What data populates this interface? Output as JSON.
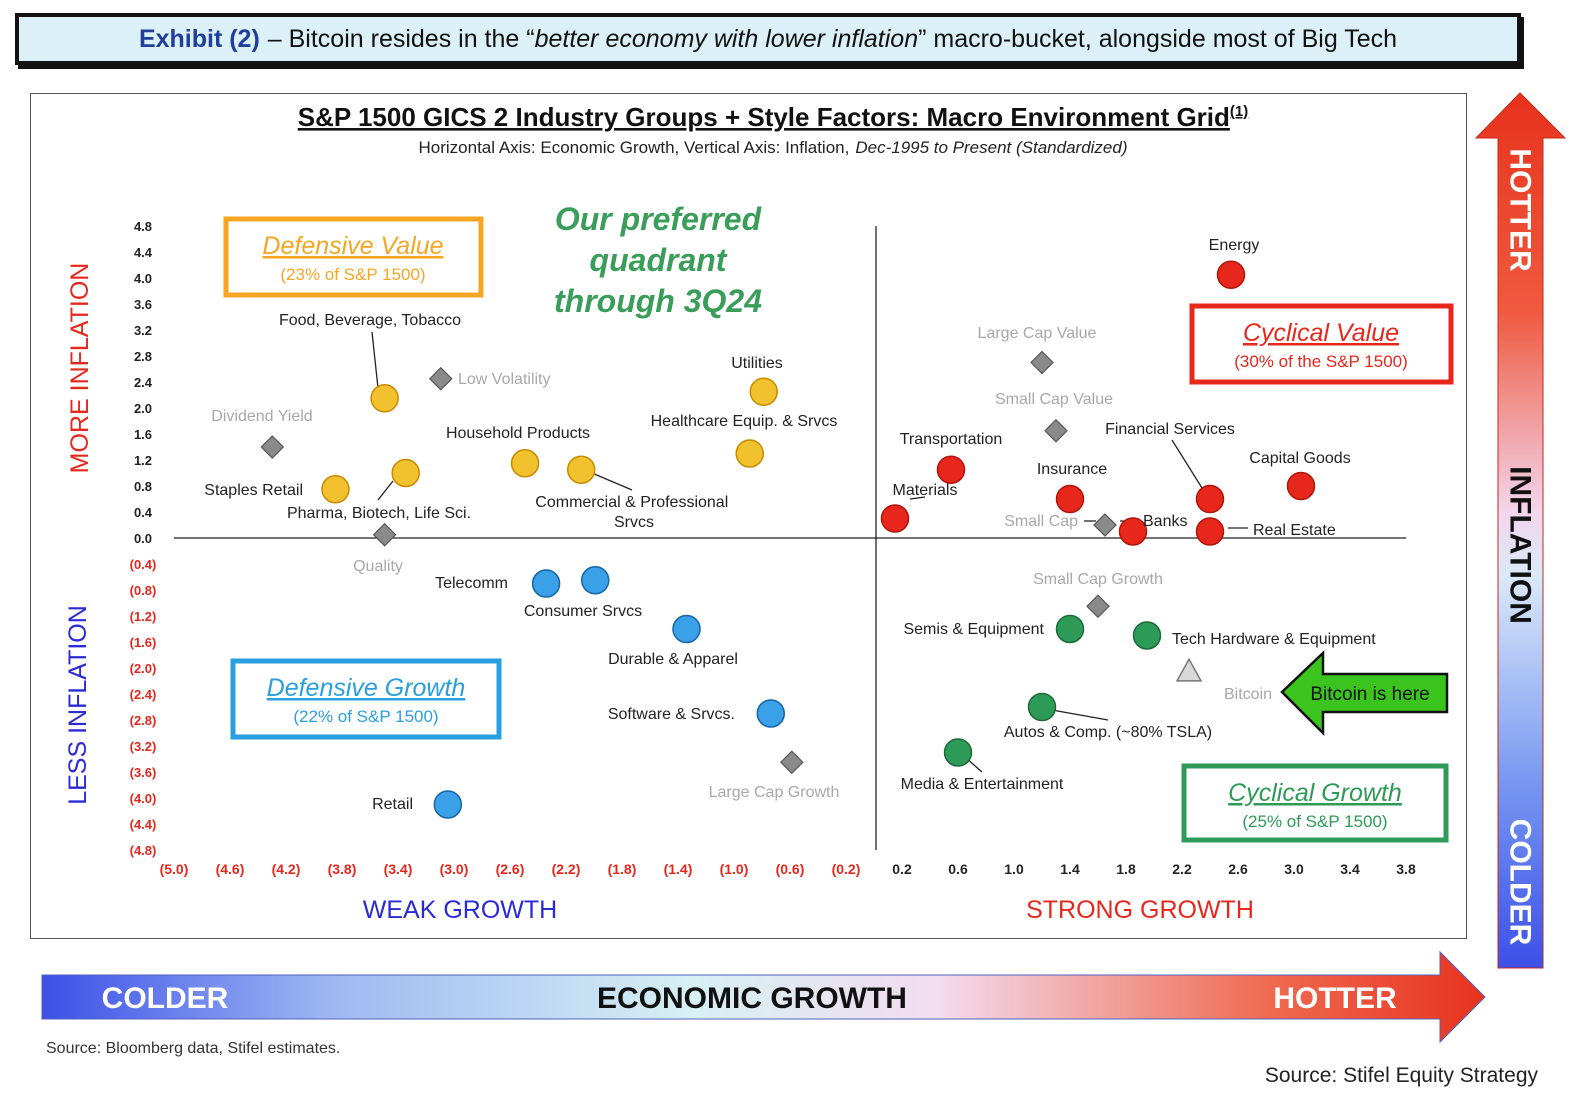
{
  "exhibit": {
    "label": "Exhibit (2)",
    "pre": "– Bitcoin resides in the “",
    "italic": "better economy with lower inflation",
    "post": "” macro-bucket, alongside most of Big Tech"
  },
  "chart_data": {
    "type": "scatter",
    "title": "S&P 1500 GICS 2 Industry Groups + Style Factors: Macro Environment Grid",
    "title_sup": "(1)",
    "subtitle_plain": "Horizontal Axis: Economic Growth, Vertical Axis: Inflation,",
    "subtitle_italic": "Dec-1995 to Present (Standardized)",
    "xlabel_left": "WEAK GROWTH",
    "xlabel_right": "STRONG GROWTH",
    "ylabel_top": "MORE INFLATION",
    "ylabel_bottom": "LESS INFLATION",
    "xlim": [
      -5.0,
      4.0
    ],
    "ylim": [
      -4.8,
      4.8
    ],
    "x_ticks": [
      "(5.0)",
      "(4.6)",
      "(4.2)",
      "(3.8)",
      "(3.4)",
      "(3.0)",
      "(2.6)",
      "(2.2)",
      "(1.8)",
      "(1.4)",
      "(1.0)",
      "(0.6)",
      "(0.2)",
      "0.2",
      "0.6",
      "1.0",
      "1.4",
      "1.8",
      "2.2",
      "2.6",
      "3.0",
      "3.4",
      "3.8"
    ],
    "y_ticks": [
      "4.8",
      "4.4",
      "4.0",
      "3.6",
      "3.2",
      "2.8",
      "2.4",
      "2.0",
      "1.6",
      "1.2",
      "0.8",
      "0.4",
      "0.0",
      "(0.4)",
      "(0.8)",
      "(1.2)",
      "(1.6)",
      "(2.0)",
      "(2.4)",
      "(2.8)",
      "(3.2)",
      "(3.6)",
      "(4.0)",
      "(4.4)",
      "(4.8)"
    ],
    "series": [
      {
        "name": "Defensive Value",
        "color": "#f2c12e",
        "stroke": "#c98a00",
        "points": [
          {
            "label": "Food, Beverage, Tobacco",
            "x": -3.5,
            "y": 2.15
          },
          {
            "label": "Staples Retail",
            "x": -3.85,
            "y": 0.75
          },
          {
            "label": "Pharma, Biotech, Life Sci.",
            "x": -3.35,
            "y": 1.0
          },
          {
            "label": "Household Products",
            "x": -2.5,
            "y": 1.15
          },
          {
            "label": "Commercial & Professional Srvcs",
            "x": -2.1,
            "y": 1.05
          },
          {
            "label": "Utilities",
            "x": -0.8,
            "y": 2.25
          },
          {
            "label": "Healthcare Equip. & Srvcs",
            "x": -0.9,
            "y": 1.3
          }
        ]
      },
      {
        "name": "Cyclical Value",
        "color": "#e8271c",
        "stroke": "#b01509",
        "points": [
          {
            "label": "Energy",
            "x": 2.55,
            "y": 4.05
          },
          {
            "label": "Transportation",
            "x": 0.55,
            "y": 1.05
          },
          {
            "label": "Materials",
            "x": 0.15,
            "y": 0.3
          },
          {
            "label": "Insurance",
            "x": 1.4,
            "y": 0.6
          },
          {
            "label": "Financial Services",
            "x": 2.4,
            "y": 0.6
          },
          {
            "label": "Capital Goods",
            "x": 3.05,
            "y": 0.8
          },
          {
            "label": "Banks",
            "x": 1.85,
            "y": 0.1
          },
          {
            "label": "Real Estate",
            "x": 2.4,
            "y": 0.1
          }
        ]
      },
      {
        "name": "Defensive Growth",
        "color": "#3aa0e8",
        "stroke": "#1565a8",
        "points": [
          {
            "label": "Telecomm",
            "x": -2.35,
            "y": -0.7
          },
          {
            "label": "Consumer Srvcs",
            "x": -2.0,
            "y": -0.65
          },
          {
            "label": "Durable & Apparel",
            "x": -1.35,
            "y": -1.4
          },
          {
            "label": "Software & Srvcs.",
            "x": -0.75,
            "y": -2.7
          },
          {
            "label": "Retail",
            "x": -3.05,
            "y": -4.1
          }
        ]
      },
      {
        "name": "Cyclical Growth",
        "color": "#2e9a58",
        "stroke": "#1a6b38",
        "points": [
          {
            "label": "Semis & Equipment",
            "x": 1.4,
            "y": -1.4
          },
          {
            "label": "Tech Hardware & Equipment",
            "x": 1.95,
            "y": -1.5
          },
          {
            "label": "Autos & Comp. (~80% TSLA)",
            "x": 1.2,
            "y": -2.6
          },
          {
            "label": "Media & Entertainment",
            "x": 0.6,
            "y": -3.3
          }
        ]
      },
      {
        "name": "Style Factors",
        "color": "#8a8a8a",
        "stroke": "#555555",
        "points": [
          {
            "label": "Low Volatility",
            "x": -3.1,
            "y": 2.45
          },
          {
            "label": "Dividend Yield",
            "x": -4.3,
            "y": 1.4
          },
          {
            "label": "Quality",
            "x": -3.5,
            "y": 0.05
          },
          {
            "label": "Large Cap Value",
            "x": 1.2,
            "y": 2.7
          },
          {
            "label": "Small Cap Value",
            "x": 1.3,
            "y": 1.65
          },
          {
            "label": "Small Cap",
            "x": 1.65,
            "y": 0.2
          },
          {
            "label": "Small Cap Growth",
            "x": 1.6,
            "y": -1.05
          },
          {
            "label": "Large Cap Growth",
            "x": -0.6,
            "y": -3.45
          }
        ]
      },
      {
        "name": "Bitcoin",
        "color": "#d9d9d9",
        "stroke": "#777777",
        "points": [
          {
            "label": "Bitcoin",
            "x": 2.25,
            "y": -2.05
          }
        ]
      }
    ],
    "annotations": {
      "preferred": [
        "Our preferred",
        "quadrant",
        "through 3Q24"
      ],
      "bitcoin_callout": "Bitcoin is here"
    },
    "quadrants": [
      {
        "name": "Defensive Value",
        "sub": "(23% of S&P 1500)",
        "color": "#f5a623"
      },
      {
        "name": "Cyclical Value",
        "sub": "(30% of the S&P 1500)",
        "color": "#e8271c"
      },
      {
        "name": "Defensive Growth",
        "sub": "(22% of S&P 1500)",
        "color": "#2a9fe0"
      },
      {
        "name": "Cyclical Growth",
        "sub": "(25% of S&P 1500)",
        "color": "#2e9a58"
      }
    ]
  },
  "arrows": {
    "vertical": {
      "top": "HOTTER",
      "middle": "INFLATION",
      "bottom": "COLDER"
    },
    "horizontal": {
      "left": "COLDER",
      "middle": "ECONOMIC GROWTH",
      "right": "HOTTER"
    }
  },
  "sources": {
    "left": "Source: Bloomberg data, Stifel estimates.",
    "right": "Source: Stifel Equity Strategy"
  }
}
